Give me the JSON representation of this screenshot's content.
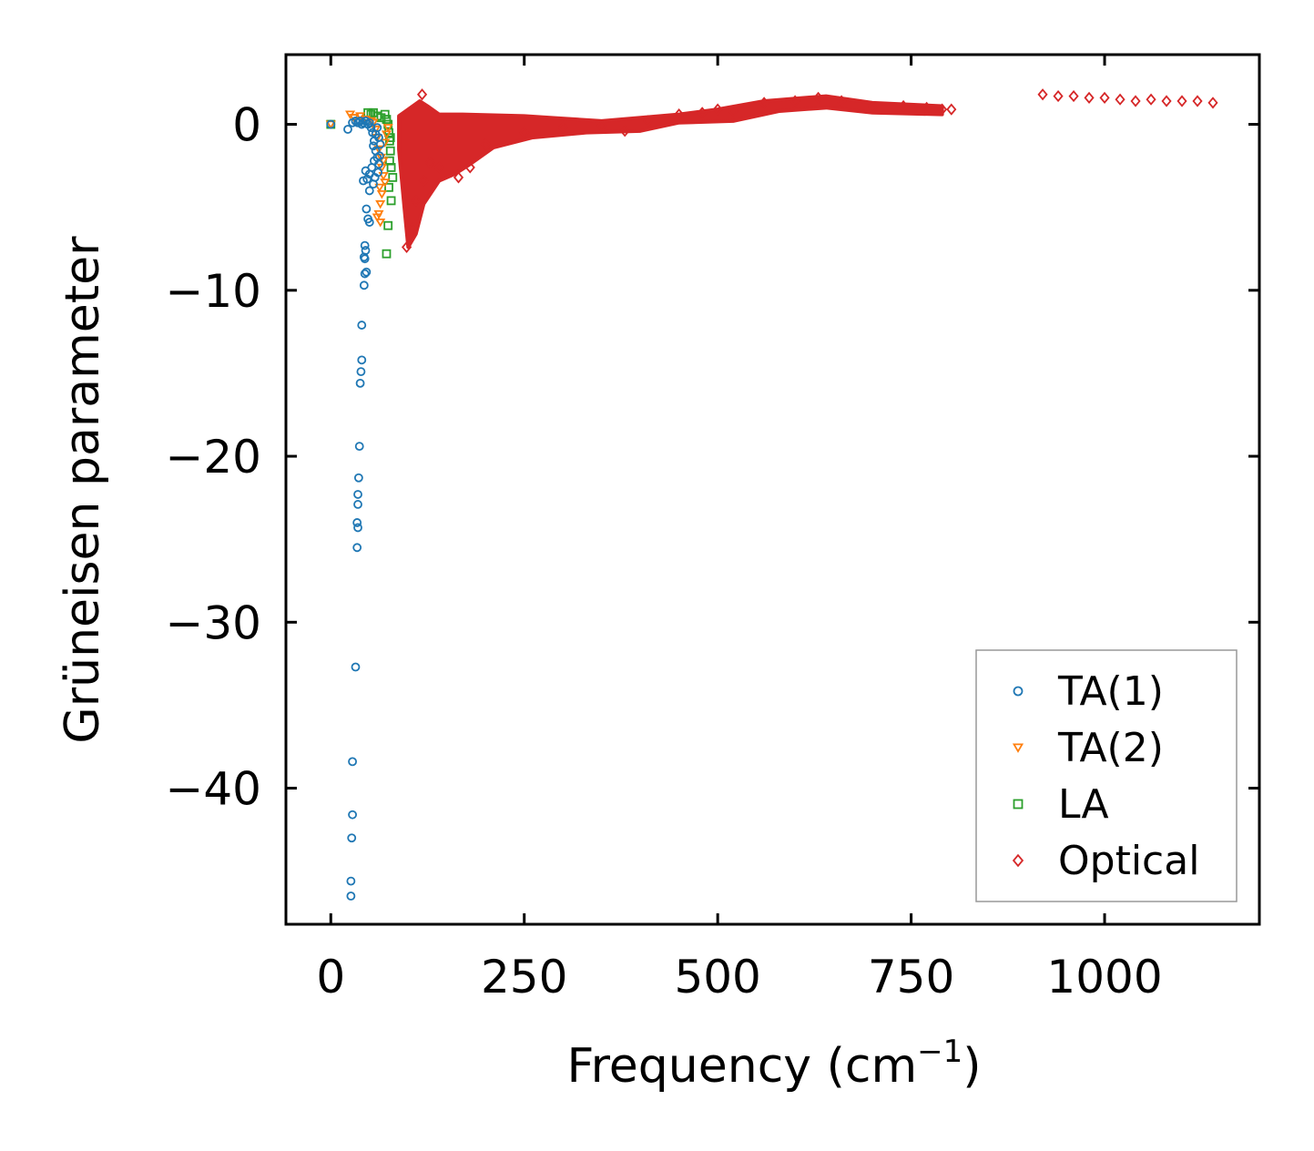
{
  "chart_data": {
    "type": "scatter",
    "title": "",
    "xlabel": "Frequency (cm",
    "xlabel_sup": "−1",
    "xlabel_suffix": ")",
    "ylabel": "Grüneisen parameter",
    "xlim": [
      -58,
      1200
    ],
    "ylim": [
      -48.2,
      4.2
    ],
    "xticks": [
      0,
      250,
      500,
      750,
      1000
    ],
    "xtick_labels": [
      "0",
      "250",
      "500",
      "750",
      "1000"
    ],
    "yticks": [
      0,
      -10,
      -20,
      -30,
      -40
    ],
    "ytick_labels": [
      "0",
      "−10",
      "−20",
      "−30",
      "−40"
    ],
    "grid": false,
    "legend_position": "lower-right",
    "series": [
      {
        "name": "TA(1)",
        "marker": "circle",
        "color": "#1f77b4",
        "points": [
          [
            0,
            0
          ],
          [
            22,
            -0.3
          ],
          [
            28,
            0.1
          ],
          [
            32,
            0.2
          ],
          [
            35,
            0.1
          ],
          [
            38,
            0.2
          ],
          [
            40,
            0.0
          ],
          [
            42,
            0.1
          ],
          [
            45,
            0.2
          ],
          [
            48,
            0.0
          ],
          [
            50,
            0.1
          ],
          [
            52,
            -0.2
          ],
          [
            54,
            -0.5
          ],
          [
            56,
            -1.0
          ],
          [
            58,
            -1.6
          ],
          [
            60,
            -2.0
          ],
          [
            62,
            -2.4
          ],
          [
            55,
            -1.3
          ],
          [
            53,
            -2.6
          ],
          [
            50,
            -3.0
          ],
          [
            47,
            -3.3
          ],
          [
            45,
            -2.8
          ],
          [
            42,
            -3.4
          ],
          [
            50,
            -4.0
          ],
          [
            55,
            -3.6
          ],
          [
            46,
            -5.1
          ],
          [
            48,
            -5.7
          ],
          [
            50,
            -5.9
          ],
          [
            44,
            -7.3
          ],
          [
            45,
            -7.6
          ],
          [
            43,
            -8.0
          ],
          [
            44,
            -8.1
          ],
          [
            44,
            -9.0
          ],
          [
            46,
            -8.9
          ],
          [
            43,
            -9.7
          ],
          [
            40,
            -12.1
          ],
          [
            40,
            -14.2
          ],
          [
            39,
            -14.9
          ],
          [
            38,
            -15.6
          ],
          [
            37,
            -19.4
          ],
          [
            36,
            -21.3
          ],
          [
            35,
            -22.3
          ],
          [
            35,
            -22.9
          ],
          [
            34,
            -24.0
          ],
          [
            35,
            -24.3
          ],
          [
            34,
            -25.5
          ],
          [
            32,
            -32.7
          ],
          [
            28,
            -38.4
          ],
          [
            28,
            -41.6
          ],
          [
            27,
            -43.0
          ],
          [
            26,
            -45.6
          ],
          [
            26,
            -46.5
          ],
          [
            60,
            -0.2
          ],
          [
            62,
            -0.8
          ],
          [
            64,
            -1.2
          ],
          [
            58,
            -0.6
          ],
          [
            56,
            -2.2
          ],
          [
            61,
            -2.9
          ],
          [
            63,
            -1.9
          ],
          [
            57,
            -3.2
          ]
        ]
      },
      {
        "name": "TA(2)",
        "marker": "triangle-down",
        "color": "#ff7f0e",
        "points": [
          [
            0,
            0
          ],
          [
            25,
            0.6
          ],
          [
            30,
            0.4
          ],
          [
            38,
            0.5
          ],
          [
            45,
            0.3
          ],
          [
            52,
            0.2
          ],
          [
            55,
            0.1
          ],
          [
            58,
            -0.3
          ],
          [
            60,
            -0.8
          ],
          [
            62,
            -1.5
          ],
          [
            65,
            -2.0
          ],
          [
            66,
            -2.6
          ],
          [
            68,
            -3.1
          ],
          [
            70,
            -3.5
          ],
          [
            66,
            -4.2
          ],
          [
            64,
            -4.8
          ],
          [
            62,
            -5.4
          ],
          [
            64,
            -5.9
          ],
          [
            60,
            -5.6
          ],
          [
            68,
            -2.2
          ],
          [
            70,
            -1.1
          ],
          [
            72,
            -0.6
          ],
          [
            74,
            -0.2
          ],
          [
            63,
            -3.8
          ]
        ]
      },
      {
        "name": "LA",
        "marker": "square",
        "color": "#2ca02c",
        "points": [
          [
            0,
            0
          ],
          [
            48,
            0.7
          ],
          [
            52,
            0.6
          ],
          [
            55,
            0.7
          ],
          [
            60,
            0.5
          ],
          [
            65,
            0.4
          ],
          [
            70,
            0.6
          ],
          [
            72,
            0.3
          ],
          [
            74,
            0.0
          ],
          [
            75,
            -0.5
          ],
          [
            76,
            -1.0
          ],
          [
            77,
            -1.6
          ],
          [
            76,
            -2.2
          ],
          [
            78,
            -2.6
          ],
          [
            80,
            -3.2
          ],
          [
            78,
            -4.6
          ],
          [
            74,
            -6.1
          ],
          [
            72,
            -7.8
          ],
          [
            75,
            -3.8
          ],
          [
            77,
            -0.8
          ]
        ]
      },
      {
        "name": "Optical",
        "marker": "diamond",
        "color": "#d62728",
        "points": [
          [
            802,
            0.9
          ],
          [
            920,
            1.8
          ],
          [
            940,
            1.7
          ],
          [
            960,
            1.7
          ],
          [
            980,
            1.6
          ],
          [
            1000,
            1.6
          ],
          [
            1020,
            1.5
          ],
          [
            1040,
            1.4
          ],
          [
            1060,
            1.5
          ],
          [
            1080,
            1.4
          ],
          [
            1100,
            1.4
          ],
          [
            1120,
            1.4
          ],
          [
            1140,
            1.3
          ],
          [
            118,
            1.8
          ],
          [
            98,
            -7.4
          ],
          [
            105,
            -6.3
          ],
          [
            110,
            -4.6
          ],
          [
            120,
            -3.4
          ],
          [
            128,
            -2.3
          ],
          [
            140,
            -2.6
          ],
          [
            165,
            -3.2
          ],
          [
            180,
            -2.6
          ],
          [
            200,
            -1.2
          ],
          [
            250,
            -0.5
          ],
          [
            300,
            -0.2
          ],
          [
            350,
            -0.1
          ],
          [
            380,
            -0.4
          ],
          [
            410,
            0.2
          ],
          [
            450,
            0.6
          ],
          [
            480,
            0.7
          ],
          [
            500,
            0.9
          ],
          [
            520,
            0.8
          ],
          [
            560,
            1.3
          ],
          [
            600,
            1.4
          ],
          [
            630,
            1.6
          ],
          [
            660,
            1.4
          ],
          [
            700,
            1.0
          ],
          [
            740,
            1.1
          ],
          [
            770,
            1.0
          ],
          [
            790,
            0.9
          ]
        ]
      }
    ],
    "optical_band": {
      "upper": [
        [
          88,
          0.5
        ],
        [
          100,
          0.9
        ],
        [
          115,
          1.4
        ],
        [
          125,
          1.1
        ],
        [
          140,
          0.6
        ],
        [
          170,
          0.6
        ],
        [
          250,
          0.5
        ],
        [
          350,
          0.2
        ],
        [
          450,
          0.6
        ],
        [
          500,
          0.9
        ],
        [
          560,
          1.4
        ],
        [
          640,
          1.7
        ],
        [
          700,
          1.3
        ],
        [
          790,
          1.1
        ]
      ],
      "lower": [
        [
          88,
          -1.5
        ],
        [
          95,
          -5.0
        ],
        [
          100,
          -7.4
        ],
        [
          110,
          -6.6
        ],
        [
          120,
          -4.8
        ],
        [
          140,
          -3.4
        ],
        [
          160,
          -3.0
        ],
        [
          180,
          -2.4
        ],
        [
          210,
          -1.4
        ],
        [
          260,
          -0.8
        ],
        [
          330,
          -0.5
        ],
        [
          400,
          -0.4
        ],
        [
          450,
          0.1
        ],
        [
          520,
          0.2
        ],
        [
          580,
          0.8
        ],
        [
          640,
          1.0
        ],
        [
          700,
          0.7
        ],
        [
          790,
          0.6
        ]
      ]
    }
  }
}
